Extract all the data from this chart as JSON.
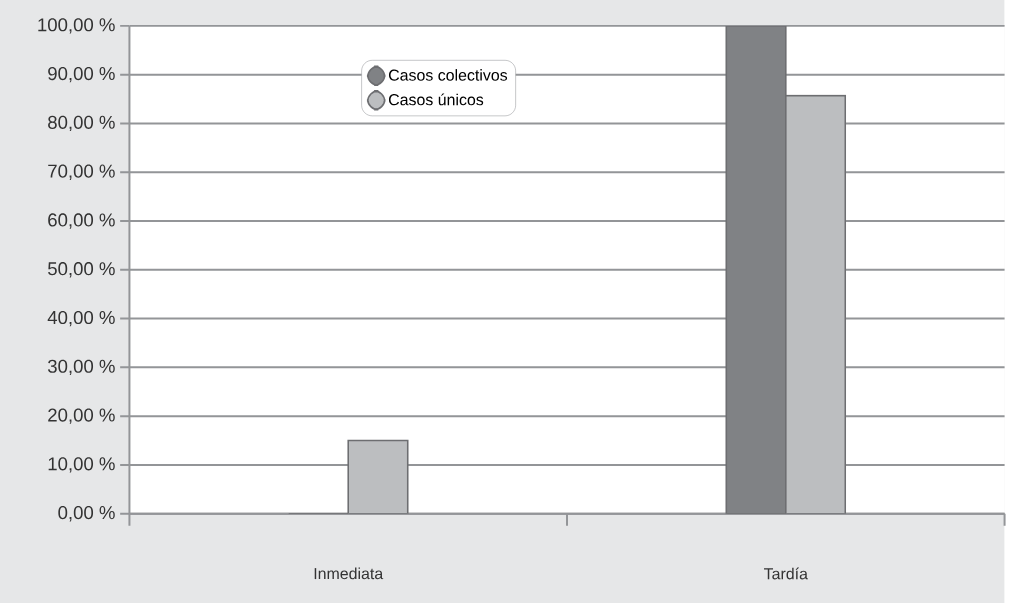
{
  "chart_data": {
    "type": "bar",
    "categories": [
      "Inmediata",
      "Tardía"
    ],
    "series": [
      {
        "name": "Casos colectivos",
        "color": "#808285",
        "values": [
          0,
          100
        ]
      },
      {
        "name": "Casos únicos",
        "color": "#bcbec0",
        "values": [
          15,
          85.7
        ]
      }
    ],
    "ylim": [
      0,
      100
    ],
    "yticks": [
      {
        "value": 0,
        "label": "0,00 %"
      },
      {
        "value": 10,
        "label": "10,00 %"
      },
      {
        "value": 20,
        "label": "20,00 %"
      },
      {
        "value": 30,
        "label": "30,00 %"
      },
      {
        "value": 40,
        "label": "40,00 %"
      },
      {
        "value": 50,
        "label": "50,00 %"
      },
      {
        "value": 60,
        "label": "60,00 %"
      },
      {
        "value": 70,
        "label": "70,00 %"
      },
      {
        "value": 80,
        "label": "80,00 %"
      },
      {
        "value": 90,
        "label": "90,00 %"
      },
      {
        "value": 100,
        "label": "100,00 %"
      }
    ],
    "grid": "y",
    "legend": "top left"
  }
}
